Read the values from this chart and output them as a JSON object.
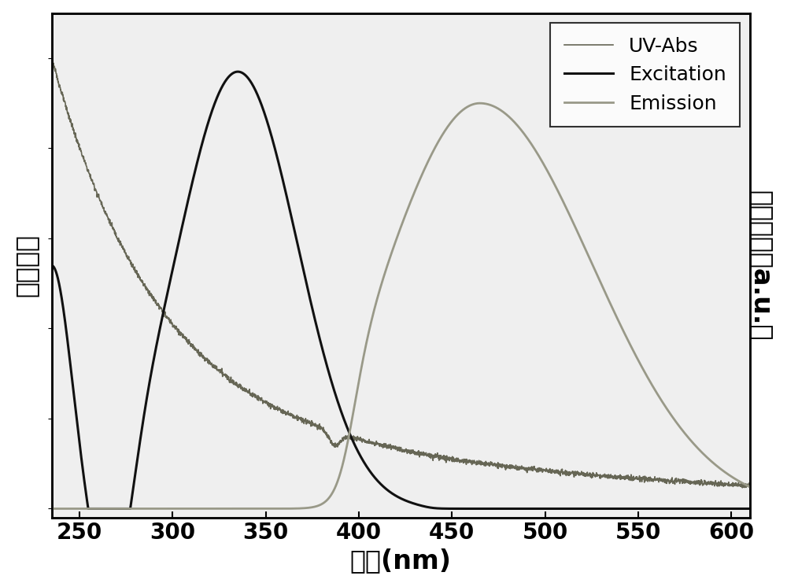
{
  "x_min": 235,
  "x_max": 610,
  "x_ticks": [
    250,
    300,
    350,
    400,
    450,
    500,
    550,
    600
  ],
  "xlabel": "波长(nm)",
  "ylabel_left": "吸光强度",
  "ylabel_right": "荧光强度（a.u.）",
  "uv_abs_color": "#666655",
  "excitation_color": "#111111",
  "emission_color": "#999988",
  "legend_labels": [
    "UV-Abs",
    "Excitation",
    "Emission"
  ],
  "plot_bg": "#efefef",
  "figure_bg": "#ffffff",
  "uv_lw": 1.2,
  "exc_lw": 2.2,
  "emi_lw": 2.0,
  "xlabel_fontsize": 24,
  "ylabel_fontsize": 24,
  "tick_fontsize": 20,
  "legend_fontsize": 18
}
